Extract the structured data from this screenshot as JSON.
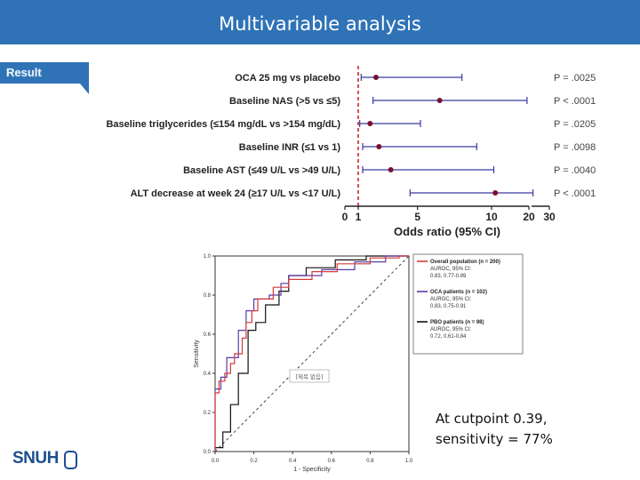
{
  "slide": {
    "title": "Multivariable analysis",
    "tab_label": "Result",
    "note_line1": "At cutpoint 0.39,",
    "note_line2": "sensitivity = 77%",
    "logo_text": "SNUH",
    "accent_color": "#2f73b6",
    "logo_color": "#1d4f91"
  },
  "chart_data": [
    {
      "type": "forest",
      "xlabel": "Odds ratio (95% CI)",
      "x_ticks": [
        "0",
        "1",
        "5",
        "10",
        "20",
        "30"
      ],
      "reference_line": 1,
      "rows": [
        {
          "label": "OCA 25 mg vs placebo",
          "or": 2.2,
          "lo": 1.2,
          "hi": 8.0,
          "p": "P = .0025"
        },
        {
          "label": "Baseline NAS (>5 vs ≤5)",
          "or": 6.5,
          "lo": 2.0,
          "hi": 19.5,
          "p": "P < .0001"
        },
        {
          "label": "Baseline triglycerides (≤154 mg/dL vs >154 mg/dL)",
          "or": 1.8,
          "lo": 1.1,
          "hi": 5.2,
          "p": "P = .0205"
        },
        {
          "label": "Baseline INR  (≤1 vs 1)",
          "or": 2.4,
          "lo": 1.3,
          "hi": 9.0,
          "p": "P = .0098"
        },
        {
          "label": "Baseline AST (≤49 U/L vs >49 U/L)",
          "or": 3.2,
          "lo": 1.3,
          "hi": 10.6,
          "p": "P = .0040"
        },
        {
          "label": "ALT decrease at week 24 (≥17 U/L vs <17 U/L)",
          "or": 11.0,
          "lo": 4.5,
          "hi": 22.0,
          "p": "P < .0001"
        }
      ]
    },
    {
      "type": "line",
      "title": "",
      "xlabel": "1 - Specificity",
      "ylabel": "Sensitivity",
      "xlim": [
        0,
        1
      ],
      "ylim": [
        0,
        1
      ],
      "x_ticks": [
        "0.0",
        "0.2",
        "0.4",
        "0.6",
        "0.8",
        "1.0"
      ],
      "y_ticks": [
        "0.0",
        "0.2",
        "0.4",
        "0.6",
        "0.8",
        "1.0"
      ],
      "inset_label": "[제목 없음]",
      "series": [
        {
          "name": "Overall population (n = 200)",
          "desc1": "AUROC, 95% CI:",
          "desc2": "0.83, 0.77-0.89",
          "color": "#d33b3b",
          "points": [
            [
              0,
              0
            ],
            [
              0,
              0.3
            ],
            [
              0.02,
              0.3
            ],
            [
              0.02,
              0.36
            ],
            [
              0.05,
              0.36
            ],
            [
              0.05,
              0.4
            ],
            [
              0.08,
              0.4
            ],
            [
              0.08,
              0.45
            ],
            [
              0.1,
              0.45
            ],
            [
              0.1,
              0.5
            ],
            [
              0.14,
              0.5
            ],
            [
              0.14,
              0.58
            ],
            [
              0.16,
              0.58
            ],
            [
              0.16,
              0.66
            ],
            [
              0.19,
              0.66
            ],
            [
              0.19,
              0.72
            ],
            [
              0.22,
              0.72
            ],
            [
              0.22,
              0.78
            ],
            [
              0.3,
              0.78
            ],
            [
              0.3,
              0.84
            ],
            [
              0.38,
              0.84
            ],
            [
              0.38,
              0.88
            ],
            [
              0.5,
              0.88
            ],
            [
              0.5,
              0.92
            ],
            [
              0.63,
              0.92
            ],
            [
              0.63,
              0.96
            ],
            [
              0.8,
              0.96
            ],
            [
              0.8,
              0.99
            ],
            [
              0.95,
              0.99
            ],
            [
              0.95,
              1
            ],
            [
              1,
              1
            ]
          ]
        },
        {
          "name": "OCA patients (n = 102)",
          "desc1": "AUROC, 95% CI:",
          "desc2": "0.83, 0.75-0.91",
          "color": "#5a3aa6",
          "points": [
            [
              0,
              0
            ],
            [
              0,
              0.32
            ],
            [
              0.03,
              0.32
            ],
            [
              0.03,
              0.38
            ],
            [
              0.06,
              0.38
            ],
            [
              0.06,
              0.48
            ],
            [
              0.12,
              0.48
            ],
            [
              0.12,
              0.62
            ],
            [
              0.16,
              0.62
            ],
            [
              0.16,
              0.72
            ],
            [
              0.2,
              0.72
            ],
            [
              0.2,
              0.78
            ],
            [
              0.28,
              0.78
            ],
            [
              0.28,
              0.8
            ],
            [
              0.34,
              0.8
            ],
            [
              0.34,
              0.86
            ],
            [
              0.38,
              0.86
            ],
            [
              0.38,
              0.9
            ],
            [
              0.55,
              0.9
            ],
            [
              0.55,
              0.93
            ],
            [
              0.72,
              0.93
            ],
            [
              0.72,
              0.97
            ],
            [
              0.88,
              0.97
            ],
            [
              0.88,
              1
            ],
            [
              1,
              1
            ]
          ]
        },
        {
          "name": "PBO patients (n = 98)",
          "desc1": "AUROC, 95% CI:",
          "desc2": "0.72, 0.61-0.84",
          "color": "#111111",
          "points": [
            [
              0,
              0
            ],
            [
              0,
              0.02
            ],
            [
              0.04,
              0.02
            ],
            [
              0.04,
              0.1
            ],
            [
              0.08,
              0.1
            ],
            [
              0.08,
              0.24
            ],
            [
              0.12,
              0.24
            ],
            [
              0.12,
              0.4
            ],
            [
              0.17,
              0.4
            ],
            [
              0.17,
              0.62
            ],
            [
              0.21,
              0.62
            ],
            [
              0.21,
              0.66
            ],
            [
              0.26,
              0.66
            ],
            [
              0.26,
              0.75
            ],
            [
              0.33,
              0.75
            ],
            [
              0.33,
              0.82
            ],
            [
              0.38,
              0.82
            ],
            [
              0.38,
              0.9
            ],
            [
              0.47,
              0.9
            ],
            [
              0.47,
              0.94
            ],
            [
              0.62,
              0.94
            ],
            [
              0.62,
              0.98
            ],
            [
              0.78,
              0.98
            ],
            [
              0.78,
              1
            ],
            [
              1,
              1
            ]
          ]
        }
      ]
    }
  ]
}
